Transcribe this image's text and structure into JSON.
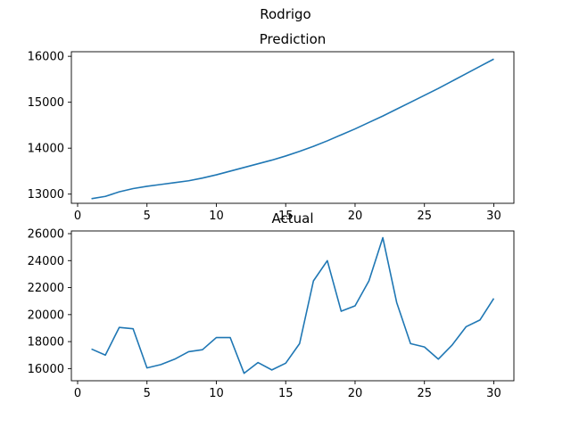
{
  "figure": {
    "suptitle": "Rodrigo"
  },
  "chart_data": [
    {
      "type": "line",
      "title": "Prediction",
      "xlabel": "",
      "ylabel": "",
      "color": "#1f77b4",
      "grid": false,
      "xlim": [
        -0.45,
        31.45
      ],
      "ylim": [
        12800,
        16100
      ],
      "xticks": [
        0,
        5,
        10,
        15,
        20,
        25,
        30
      ],
      "yticks": [
        13000,
        14000,
        15000,
        16000
      ],
      "x": [
        1,
        2,
        3,
        4,
        5,
        6,
        7,
        8,
        9,
        10,
        11,
        12,
        13,
        14,
        15,
        16,
        17,
        18,
        19,
        20,
        21,
        22,
        23,
        24,
        25,
        26,
        27,
        28,
        29,
        30
      ],
      "y": [
        12900,
        12950,
        13050,
        13120,
        13170,
        13210,
        13250,
        13290,
        13350,
        13420,
        13500,
        13580,
        13660,
        13740,
        13830,
        13930,
        14040,
        14160,
        14290,
        14420,
        14560,
        14700,
        14850,
        15000,
        15150,
        15300,
        15460,
        15620,
        15780,
        15940
      ]
    },
    {
      "type": "line",
      "title": "Actual",
      "xlabel": "",
      "ylabel": "",
      "color": "#1f77b4",
      "grid": false,
      "xlim": [
        -0.45,
        31.45
      ],
      "ylim": [
        15100,
        26200
      ],
      "xticks": [
        0,
        5,
        10,
        15,
        20,
        25,
        30
      ],
      "yticks": [
        16000,
        18000,
        20000,
        22000,
        24000,
        26000
      ],
      "x": [
        1,
        2,
        3,
        4,
        5,
        6,
        7,
        8,
        9,
        10,
        11,
        12,
        13,
        14,
        15,
        16,
        17,
        18,
        19,
        20,
        21,
        22,
        23,
        24,
        25,
        26,
        27,
        28,
        29,
        30
      ],
      "y": [
        17450,
        17000,
        19050,
        18950,
        16050,
        16300,
        16700,
        17250,
        17400,
        18300,
        18300,
        15650,
        16450,
        15900,
        16400,
        17850,
        22500,
        24000,
        20250,
        20650,
        22500,
        25700,
        20900,
        17850,
        17600,
        16700,
        17750,
        19100,
        19600,
        21200
      ]
    }
  ]
}
